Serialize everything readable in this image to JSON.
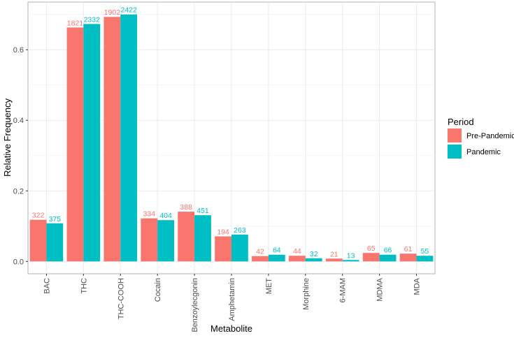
{
  "chart_data": {
    "type": "bar",
    "xlabel": "Metabolite",
    "ylabel": "Relative Frequency",
    "ylim": [
      -0.035,
      0.735
    ],
    "yticks": [
      0.0,
      0.2,
      0.4,
      0.6
    ],
    "ytick_labels": [
      "0.0",
      "0.2",
      "0.4",
      "0.6"
    ],
    "categories": [
      "BAC",
      "THC",
      "THC-COOH",
      "Cocain",
      "Benzoylecgonin",
      "Amphetamin",
      "MET",
      "Morphine",
      "6-MAM",
      "MDMA",
      "MDA"
    ],
    "grid": true,
    "legend_position": "right",
    "legend_title": "Period",
    "series": [
      {
        "name": "Pre-Pandemic",
        "color": "#F8766D",
        "values": [
          0.118,
          0.663,
          0.693,
          0.122,
          0.141,
          0.071,
          0.015,
          0.016,
          0.008,
          0.024,
          0.022
        ],
        "labels": [
          "322",
          "1821",
          "1902",
          "334",
          "388",
          "194",
          "42",
          "44",
          "21",
          "65",
          "61"
        ]
      },
      {
        "name": "Pandemic",
        "color": "#00BFC4",
        "values": [
          0.108,
          0.673,
          0.7,
          0.117,
          0.131,
          0.076,
          0.019,
          0.009,
          0.004,
          0.019,
          0.016
        ],
        "labels": [
          "375",
          "2332",
          "2422",
          "404",
          "451",
          "263",
          "64",
          "32",
          "13",
          "66",
          "55"
        ]
      }
    ]
  }
}
